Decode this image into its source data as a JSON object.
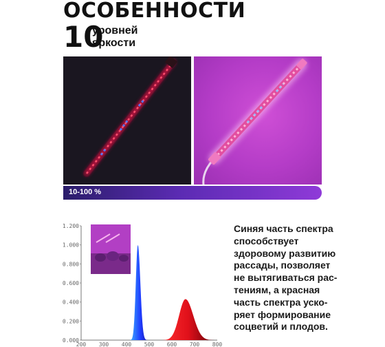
{
  "header": {
    "title": "ОСОБЕННОСТИ",
    "brightness_count": "10",
    "brightness_label_1": "уровней",
    "brightness_label_2": "яркости"
  },
  "range": {
    "label": "10-100 %"
  },
  "description": {
    "lines": [
      "Синяя часть спектра",
      "способствует",
      "здоровому развитию",
      "рассады, позволяет",
      "не вытягиваться рас-",
      "тениям, а красная",
      "часть спектра уско-",
      "ряет формирование",
      "соцветий и плодов."
    ]
  },
  "chart_data": {
    "type": "area",
    "x_ticks": [
      "200",
      "300",
      "400",
      "500",
      "600",
      "700",
      "800"
    ],
    "y_ticks": [
      "0.000",
      "0.200",
      "0.400",
      "0.600",
      "0.800",
      "1.000",
      "1.200"
    ],
    "xlim": [
      200,
      800
    ],
    "ylim": [
      0,
      1.2
    ],
    "series": [
      {
        "color": "#1e3bff",
        "peak_x": 450,
        "peak_y": 1.0
      },
      {
        "color": "#e0101a",
        "peak_x": 660,
        "peak_y": 0.43
      }
    ]
  },
  "colors": {
    "accent_purple": "#8f3ad8",
    "blue_led": "#3b6bff",
    "red_led": "#ff2a4a"
  }
}
